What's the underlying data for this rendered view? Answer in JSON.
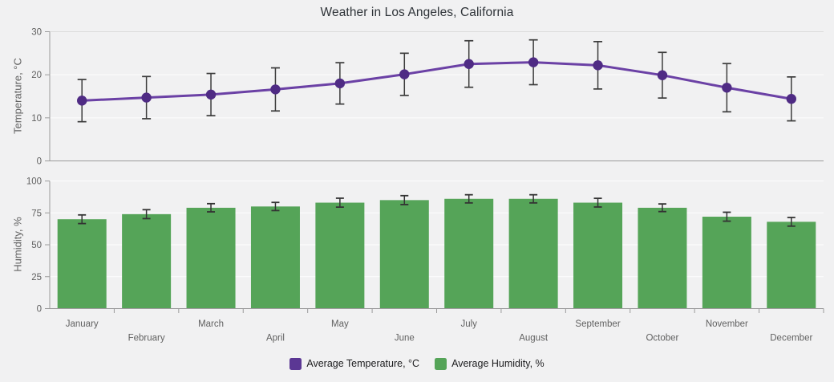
{
  "chart_data": {
    "type": "line+bar",
    "title": "Weather in Los Angeles, California",
    "categories": [
      "January",
      "February",
      "March",
      "April",
      "May",
      "June",
      "July",
      "August",
      "September",
      "October",
      "November",
      "December"
    ],
    "x_label_layout": "staggered",
    "legend_position": "bottom",
    "grid": true,
    "background_color": "#f1f1f2",
    "error_bar_color": "#333333",
    "series": [
      {
        "name": "Average Temperature, °C",
        "type": "line",
        "values": [
          14.0,
          14.7,
          15.4,
          16.6,
          18.0,
          20.1,
          22.5,
          22.9,
          22.2,
          19.9,
          17.0,
          14.4
        ],
        "errors": [
          4.9,
          4.9,
          4.9,
          5.0,
          4.8,
          4.9,
          5.4,
          5.2,
          5.5,
          5.3,
          5.6,
          5.1
        ],
        "line_color": "#6b41a5",
        "marker_color": "#4f2b84",
        "legend_color": "#5b3794",
        "axis": {
          "label": "Temperature, °C",
          "range": [
            0,
            30
          ],
          "ticks": [
            0,
            10,
            20,
            30
          ]
        }
      },
      {
        "name": "Average Humidity, %",
        "type": "bar",
        "values": [
          70,
          74,
          79,
          80,
          83,
          85,
          86,
          86,
          83,
          79,
          72,
          68
        ],
        "errors": [
          3.4,
          3.5,
          3.2,
          3.2,
          3.5,
          3.5,
          3.2,
          3.2,
          3.4,
          3.0,
          3.5,
          3.4
        ],
        "color": "#55a458",
        "axis": {
          "label": "Humidity, %",
          "range": [
            0,
            100
          ],
          "ticks": [
            0,
            25,
            50,
            75,
            100
          ]
        }
      }
    ]
  }
}
